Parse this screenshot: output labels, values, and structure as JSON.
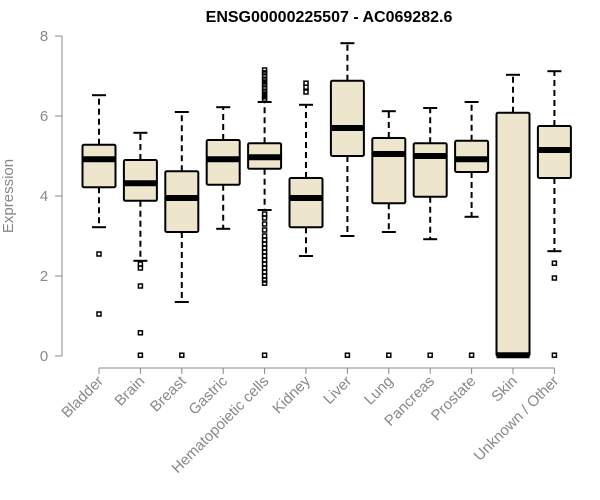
{
  "chart_data": {
    "type": "boxplot",
    "title": "ENSG00000225507 - AC069282.6",
    "xlabel": "",
    "ylabel": "Expression",
    "ylim": [
      0,
      8
    ],
    "yticks": [
      0,
      2,
      4,
      6,
      8
    ],
    "colors": {
      "box_fill": "#ede6cc",
      "stroke": "#000000",
      "axis": "#888888"
    },
    "categories": [
      "Bladder",
      "Brain",
      "Breast",
      "Gastric",
      "Hematopoietic cells",
      "Kidney",
      "Liver",
      "Lung",
      "Pancreas",
      "Prostate",
      "Skin",
      "Unknown / Other"
    ],
    "boxes": [
      {
        "category": "Bladder",
        "whisker_low": 3.22,
        "q1": 4.22,
        "median": 4.92,
        "q3": 5.28,
        "whisker_high": 6.52,
        "outliers": [
          2.55,
          1.05
        ]
      },
      {
        "category": "Brain",
        "whisker_low": 2.38,
        "q1": 3.88,
        "median": 4.32,
        "q3": 4.9,
        "whisker_high": 5.58,
        "outliers": [
          2.3,
          2.2,
          1.75,
          0.58,
          0.02
        ]
      },
      {
        "category": "Breast",
        "whisker_low": 1.35,
        "q1": 3.1,
        "median": 3.95,
        "q3": 4.62,
        "whisker_high": 6.1,
        "outliers": [
          0.02
        ]
      },
      {
        "category": "Gastric",
        "whisker_low": 3.18,
        "q1": 4.28,
        "median": 4.92,
        "q3": 5.4,
        "whisker_high": 6.22,
        "outliers": []
      },
      {
        "category": "Hematopoietic cells",
        "whisker_low": 3.65,
        "q1": 4.68,
        "median": 4.97,
        "q3": 5.32,
        "whisker_high": 6.35,
        "outliers": [
          7.15,
          7.08,
          7.0,
          6.92,
          6.85,
          6.78,
          6.7,
          6.62,
          6.55,
          6.48,
          6.42,
          3.55,
          3.45,
          3.3,
          3.15,
          3.0,
          2.9,
          2.8,
          2.7,
          2.6,
          2.5,
          2.4,
          2.3,
          2.2,
          2.1,
          2.0,
          1.9,
          1.82,
          0.02
        ]
      },
      {
        "category": "Kidney",
        "whisker_low": 2.5,
        "q1": 3.22,
        "median": 3.95,
        "q3": 4.45,
        "whisker_high": 6.28,
        "outliers": [
          6.82,
          6.72,
          6.6
        ]
      },
      {
        "category": "Liver",
        "whisker_low": 3.0,
        "q1": 5.0,
        "median": 5.7,
        "q3": 6.88,
        "whisker_high": 7.82,
        "outliers": [
          0.02
        ]
      },
      {
        "category": "Lung",
        "whisker_low": 3.1,
        "q1": 3.82,
        "median": 5.05,
        "q3": 5.45,
        "whisker_high": 6.12,
        "outliers": [
          0.02
        ]
      },
      {
        "category": "Pancreas",
        "whisker_low": 2.92,
        "q1": 3.98,
        "median": 5.0,
        "q3": 5.32,
        "whisker_high": 6.2,
        "outliers": [
          0.02
        ]
      },
      {
        "category": "Prostate",
        "whisker_low": 3.48,
        "q1": 4.6,
        "median": 4.92,
        "q3": 5.38,
        "whisker_high": 6.35,
        "outliers": [
          0.02
        ]
      },
      {
        "category": "Skin",
        "whisker_low": 0.0,
        "q1": 0.0,
        "median": 0.02,
        "q3": 6.08,
        "whisker_high": 7.03,
        "outliers": []
      },
      {
        "category": "Unknown / Other",
        "whisker_low": 2.62,
        "q1": 4.45,
        "median": 5.15,
        "q3": 5.75,
        "whisker_high": 7.12,
        "outliers": [
          2.32,
          1.95,
          0.02
        ]
      }
    ]
  }
}
